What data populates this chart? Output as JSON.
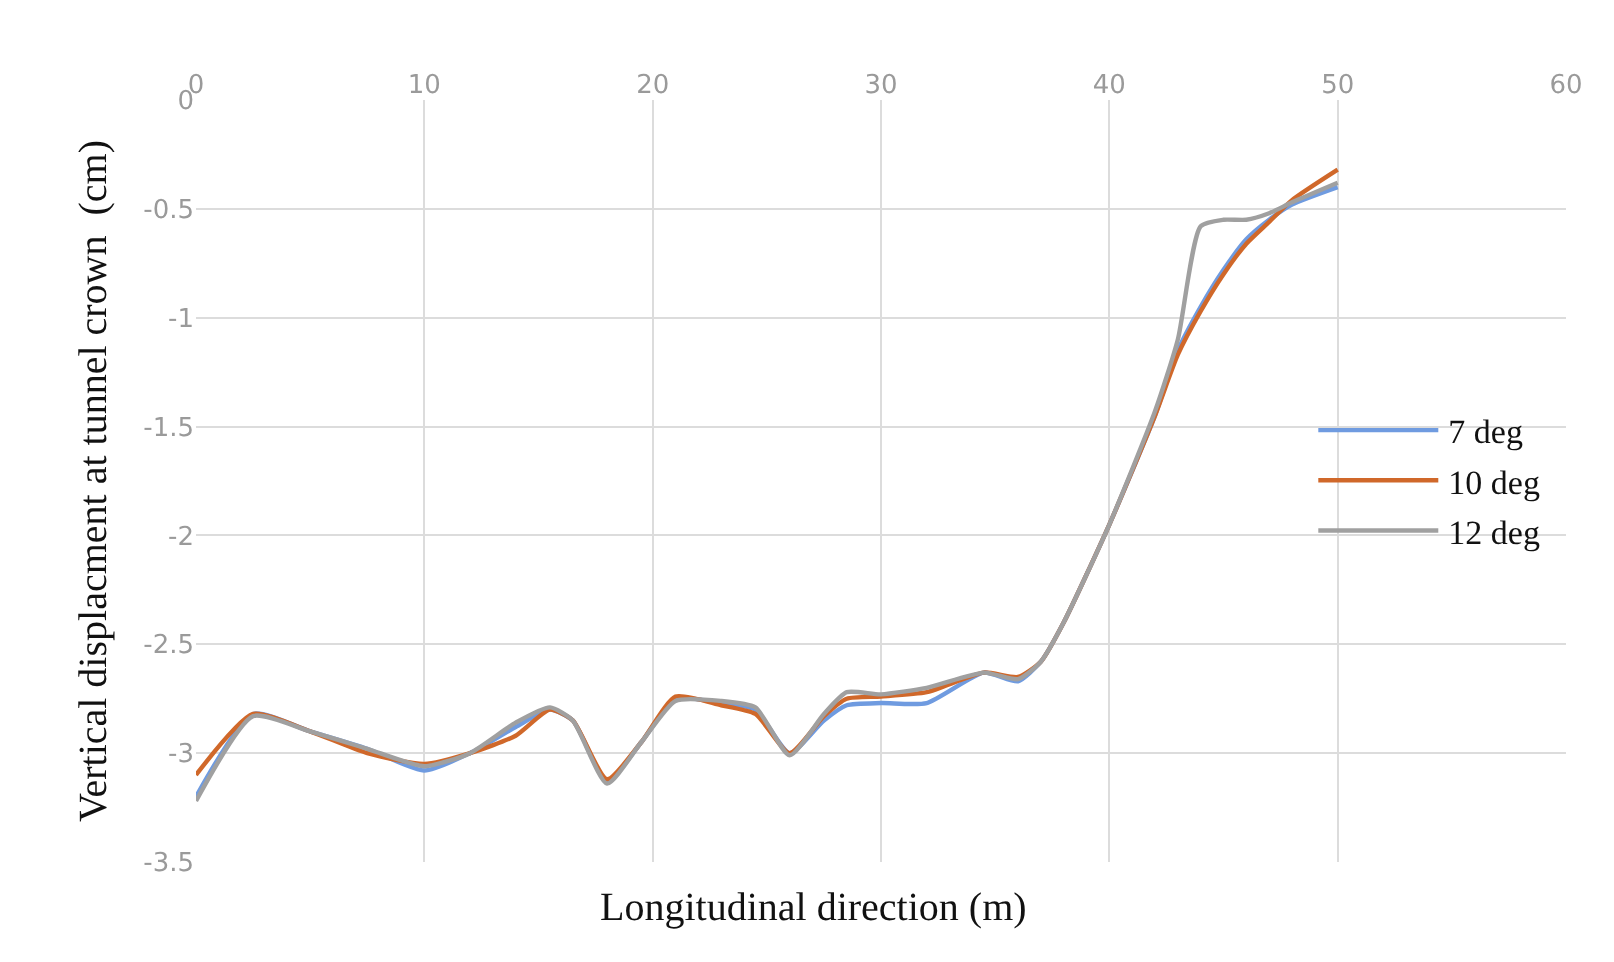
{
  "chart_data": {
    "type": "line",
    "xlabel": "Longitudinal direction (m)",
    "ylabel": "Vertical displacment at tunnel crown  (cm)",
    "xlim": [
      0,
      60
    ],
    "xticks": [
      0,
      10,
      20,
      30,
      40,
      50,
      60
    ],
    "ylim": [
      -3.5,
      0
    ],
    "yticks": [
      0,
      -0.5,
      -1,
      -1.5,
      -2,
      -2.5,
      -3,
      -3.5
    ],
    "grid": true,
    "legend": "right",
    "line_style": "solid",
    "marker": "none",
    "series": [
      {
        "name": "7 deg",
        "color": "#6f9be0",
        "x": [
          0,
          2.5,
          5,
          7.5,
          10,
          12,
          14,
          15.5,
          16.5,
          18,
          19.5,
          21,
          23,
          24.5,
          26,
          27.5,
          28.5,
          30,
          32,
          34.5,
          36,
          37,
          38,
          40,
          42,
          43,
          44,
          45,
          46,
          47,
          48,
          50
        ],
        "values": [
          -3.2,
          -2.82,
          -2.9,
          -2.98,
          -3.08,
          -3.0,
          -2.88,
          -2.8,
          -2.85,
          -3.13,
          -2.95,
          -2.75,
          -2.77,
          -2.8,
          -3.0,
          -2.85,
          -2.78,
          -2.77,
          -2.77,
          -2.63,
          -2.67,
          -2.58,
          -2.4,
          -1.95,
          -1.45,
          -1.15,
          -0.95,
          -0.78,
          -0.64,
          -0.55,
          -0.48,
          -0.4
        ]
      },
      {
        "name": "10 deg",
        "color": "#d0682a",
        "x": [
          0,
          2.5,
          5,
          7.5,
          10,
          12,
          14,
          15.5,
          16.5,
          18,
          19.5,
          21,
          23,
          24.5,
          26,
          27.5,
          28.5,
          30,
          32,
          34.5,
          36,
          37,
          38,
          40,
          42,
          43,
          44,
          45,
          46,
          47,
          48,
          50
        ],
        "values": [
          -3.1,
          -2.82,
          -2.9,
          -3.0,
          -3.05,
          -3.0,
          -2.92,
          -2.8,
          -2.85,
          -3.12,
          -2.95,
          -2.74,
          -2.78,
          -2.82,
          -3.0,
          -2.83,
          -2.75,
          -2.74,
          -2.72,
          -2.63,
          -2.65,
          -2.58,
          -2.4,
          -1.95,
          -1.45,
          -1.17,
          -0.97,
          -0.8,
          -0.66,
          -0.56,
          -0.46,
          -0.32
        ]
      },
      {
        "name": "12 deg",
        "color": "#a0a0a0",
        "x": [
          0,
          2.5,
          5,
          7.5,
          10,
          12,
          14,
          15.5,
          16.5,
          18,
          19.5,
          21,
          23,
          24.5,
          26,
          27.5,
          28.5,
          30,
          32,
          34.5,
          36,
          37,
          38,
          40,
          42,
          43,
          44,
          45,
          46,
          47,
          48,
          50
        ],
        "values": [
          -3.22,
          -2.83,
          -2.9,
          -2.98,
          -3.06,
          -3.0,
          -2.86,
          -2.79,
          -2.85,
          -3.14,
          -2.95,
          -2.76,
          -2.76,
          -2.79,
          -3.01,
          -2.82,
          -2.72,
          -2.73,
          -2.7,
          -2.63,
          -2.66,
          -2.58,
          -2.4,
          -1.95,
          -1.43,
          -1.1,
          -0.58,
          -0.55,
          -0.55,
          -0.52,
          -0.47,
          -0.38
        ]
      }
    ]
  }
}
